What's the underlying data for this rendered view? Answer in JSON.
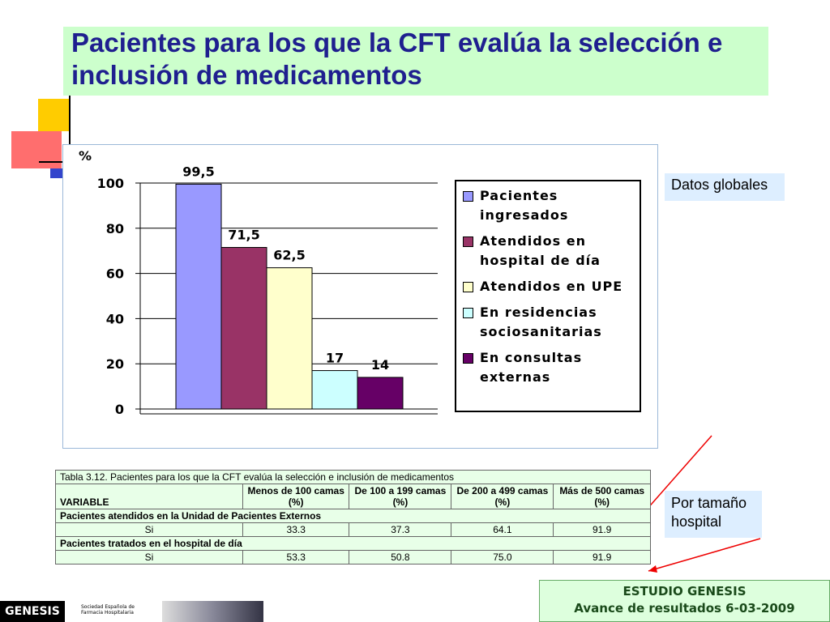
{
  "title": "Pacientes para los que la CFT evalúa la selección e inclusión de medicamentos",
  "chart_data": {
    "type": "bar",
    "ylabel": "%",
    "categories": [
      null
    ],
    "series": [
      {
        "name": "Pacientes ingresados",
        "color": "#9999ff",
        "values": [
          99.5
        ],
        "value_labels": [
          "99,5"
        ]
      },
      {
        "name": "Atendidos en hospital de día",
        "color": "#993366",
        "values": [
          71.5
        ],
        "value_labels": [
          "71,5"
        ]
      },
      {
        "name": "Atendidos en UPE",
        "color": "#ffffcc",
        "values": [
          62.5
        ],
        "value_labels": [
          "62,5"
        ]
      },
      {
        "name": "En residencias sociosanitarias",
        "color": "#ccffff",
        "values": [
          17
        ]
      },
      {
        "name": "En consultas externas",
        "color": "#660066",
        "values": [
          14
        ]
      }
    ],
    "ylim": [
      0,
      100
    ],
    "yticks": [
      0,
      20,
      40,
      60,
      80,
      100
    ],
    "grid": true,
    "legend": "right"
  },
  "callouts": [
    "Datos globales",
    "Por tamaño hospital"
  ],
  "table": {
    "caption": "Tabla 3.12. Pacientes para los que la CFT evalúa la selección e inclusión de medicamentos",
    "header": [
      "VARIABLE",
      "Menos de 100 camas (%)",
      "De 100 a 199 camas (%)",
      "De 200 a 499 camas (%)",
      "Más de 500 camas (%)"
    ],
    "sections": [
      {
        "title": "Pacientes atendidos en la Unidad de Pacientes Externos",
        "rows": [
          [
            "Si",
            "33.3",
            "37.3",
            "64.1",
            "91.9"
          ]
        ]
      },
      {
        "title": "Pacientes tratados en el hospital de día",
        "rows": [
          [
            "Si",
            "53.3",
            "50.8",
            "75.0",
            "91.9"
          ]
        ]
      }
    ]
  },
  "footer": {
    "line1": "ESTUDIO GENESIS",
    "line2": "Avance de resultados 6-03-2009"
  },
  "logo": {
    "brand": "GENESIS",
    "society": "Sociedad Española de Farmacia Hospitalaria"
  }
}
